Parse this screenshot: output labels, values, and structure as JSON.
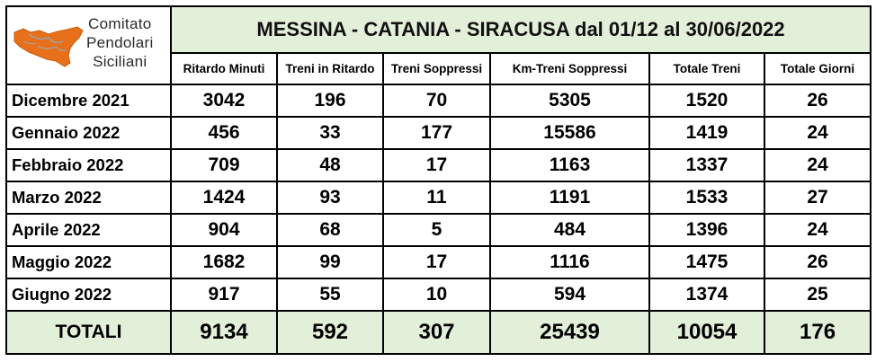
{
  "logo": {
    "lines": [
      "Comitato",
      "Pendolari",
      "Siciliani"
    ],
    "icon": "sicily-map-icon",
    "color": "#e8701a"
  },
  "title": "MESSINA - CATANIA - SIRACUSA dal 01/12 al 30/06/2022",
  "columns": [
    "Ritardo Minuti",
    "Treni in Ritardo",
    "Treni Soppressi",
    "Km-Treni Soppressi",
    "Totale Treni",
    "Totale Giorni"
  ],
  "rows": [
    {
      "month": "Dicembre 2021",
      "values": [
        "3042",
        "196",
        "70",
        "5305",
        "1520",
        "26"
      ]
    },
    {
      "month": "Gennaio 2022",
      "values": [
        "456",
        "33",
        "177",
        "15586",
        "1419",
        "24"
      ]
    },
    {
      "month": "Febbraio 2022",
      "values": [
        "709",
        "48",
        "17",
        "1163",
        "1337",
        "24"
      ]
    },
    {
      "month": "Marzo 2022",
      "values": [
        "1424",
        "93",
        "11",
        "1191",
        "1533",
        "27"
      ]
    },
    {
      "month": "Aprile 2022",
      "values": [
        "904",
        "68",
        "5",
        "484",
        "1396",
        "24"
      ]
    },
    {
      "month": "Maggio 2022",
      "values": [
        "1682",
        "99",
        "17",
        "1116",
        "1475",
        "26"
      ]
    },
    {
      "month": "Giugno 2022",
      "values": [
        "917",
        "55",
        "10",
        "594",
        "1374",
        "25"
      ]
    }
  ],
  "totals": {
    "label": "TOTALI",
    "values": [
      "9134",
      "592",
      "307",
      "25439",
      "10054",
      "176"
    ]
  },
  "colors": {
    "header_fill": "#e2efd9",
    "logo_orange": "#e8701a"
  }
}
